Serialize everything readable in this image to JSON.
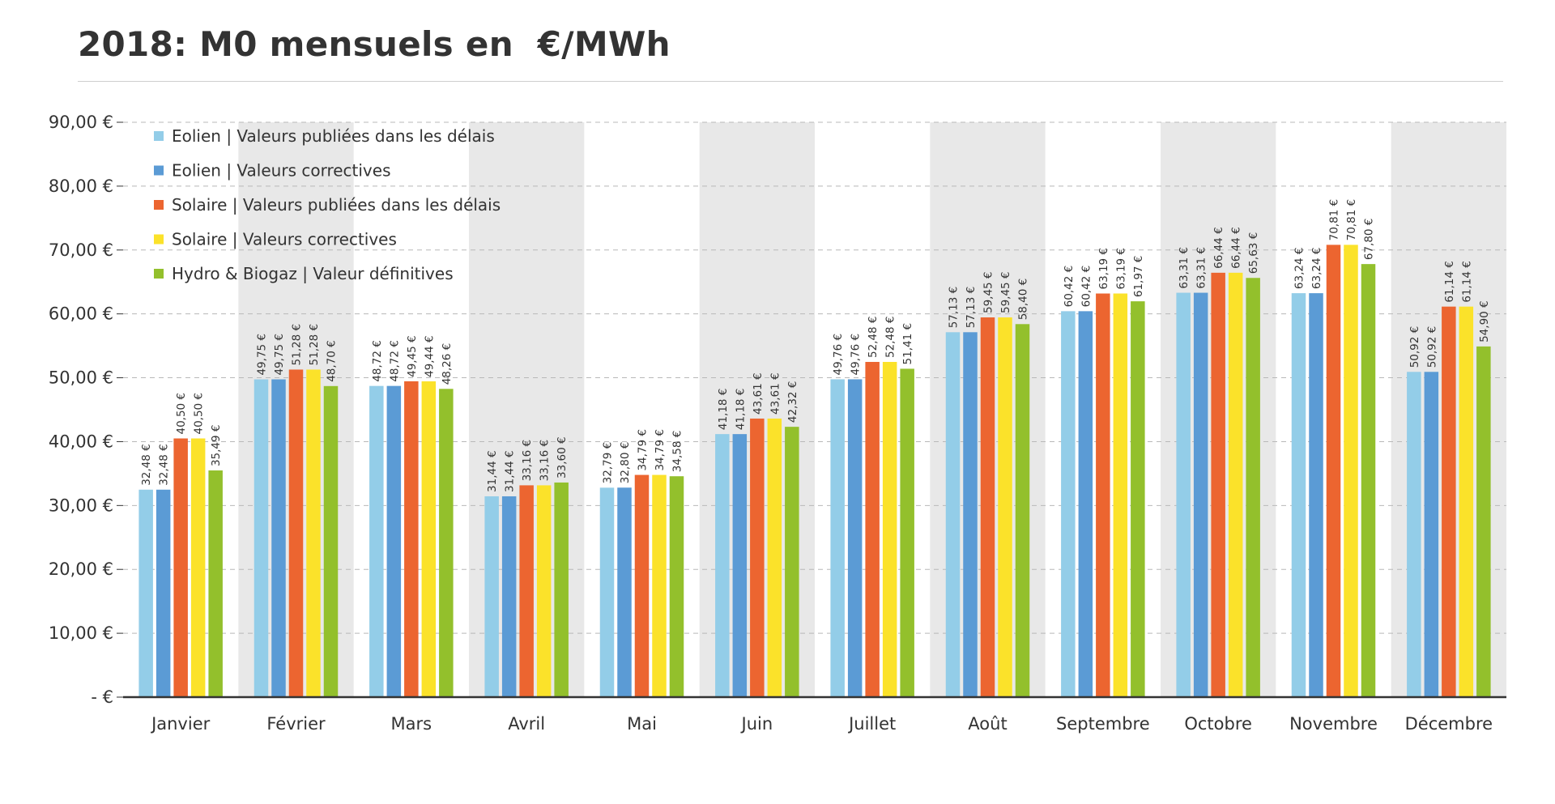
{
  "title": "2018: M0 mensuels en  €/MWh",
  "chart_data": {
    "type": "bar",
    "title": "2018: M0 mensuels en  €/MWh",
    "xlabel": "",
    "ylabel": "",
    "ylim": [
      0,
      90
    ],
    "yticks": [
      0,
      10,
      20,
      30,
      40,
      50,
      60,
      70,
      80,
      90
    ],
    "ytick_labels": [
      "- €",
      "10,00 €",
      "20,00 €",
      "30,00 €",
      "40,00 €",
      "50,00 €",
      "60,00 €",
      "70,00 €",
      "80,00 €",
      "90,00 €"
    ],
    "grid": true,
    "legend_position": "top-left",
    "categories": [
      "Janvier",
      "Février",
      "Mars",
      "Avril",
      "Mai",
      "Juin",
      "Juillet",
      "Août",
      "Septembre",
      "Octobre",
      "Novembre",
      "Décembre"
    ],
    "series": [
      {
        "name": "Eolien | Valeurs publiées dans les délais",
        "color": "#93cde8",
        "values": [
          32.48,
          49.75,
          48.72,
          31.44,
          32.79,
          41.18,
          49.76,
          57.13,
          60.42,
          63.31,
          63.24,
          50.92
        ],
        "labels": [
          "32,48 €",
          "49,75 €",
          "48,72 €",
          "31,44 €",
          "32,79 €",
          "41,18 €",
          "49,76 €",
          "57,13 €",
          "60,42 €",
          "63,31 €",
          "63,24 €",
          "50,92 €"
        ]
      },
      {
        "name": "Eolien | Valeurs correctives",
        "color": "#5b9bd5",
        "values": [
          32.48,
          49.75,
          48.72,
          31.44,
          32.8,
          41.18,
          49.76,
          57.13,
          60.42,
          63.31,
          63.24,
          50.92
        ],
        "labels": [
          "32,48 €",
          "49,75 €",
          "48,72 €",
          "31,44 €",
          "32,80 €",
          "41,18 €",
          "49,76 €",
          "57,13 €",
          "60,42 €",
          "63,31 €",
          "63,24 €",
          "50,92 €"
        ]
      },
      {
        "name": "Solaire | Valeurs publiées dans les délais",
        "color": "#ec6530",
        "values": [
          40.5,
          51.28,
          49.45,
          33.16,
          34.79,
          43.61,
          52.48,
          59.45,
          63.19,
          66.44,
          70.81,
          61.14
        ],
        "labels": [
          "40,50 €",
          "51,28 €",
          "49,45 €",
          "33,16 €",
          "34,79 €",
          "43,61 €",
          "52,48 €",
          "59,45 €",
          "63,19 €",
          "66,44 €",
          "70,81 €",
          "61,14 €"
        ]
      },
      {
        "name": "Solaire | Valeurs correctives",
        "color": "#fbe22a",
        "values": [
          40.5,
          51.28,
          49.44,
          33.16,
          34.79,
          43.61,
          52.48,
          59.45,
          63.19,
          66.44,
          70.81,
          61.14
        ],
        "labels": [
          "40,50 €",
          "51,28 €",
          "49,44 €",
          "33,16 €",
          "34,79 €",
          "43,61 €",
          "52,48 €",
          "59,45 €",
          "63,19 €",
          "66,44 €",
          "70,81 €",
          "61,14 €"
        ]
      },
      {
        "name": "Hydro & Biogaz | Valeur définitives",
        "color": "#93c02c",
        "values": [
          35.49,
          48.7,
          48.26,
          33.6,
          34.58,
          42.32,
          51.41,
          58.4,
          61.97,
          65.63,
          67.8,
          54.9
        ],
        "labels": [
          "35,49 €",
          "48,70 €",
          "48,26 €",
          "33,60 €",
          "34,58 €",
          "42,32 €",
          "51,41 €",
          "58,40 €",
          "61,97 €",
          "65,63 €",
          "67,80 €",
          "54,90 €"
        ]
      }
    ],
    "colors": {
      "band": "#e8e8e8",
      "grid": "#b8b8b8",
      "axis": "#333333",
      "text": "#333333"
    }
  }
}
